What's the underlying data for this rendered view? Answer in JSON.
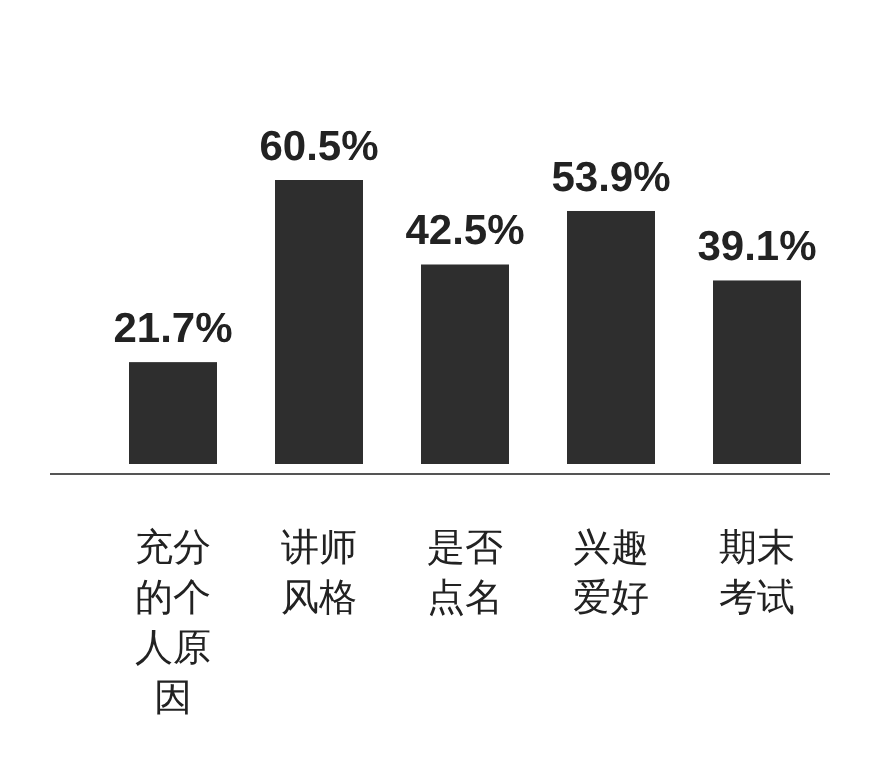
{
  "chart_data": {
    "type": "bar",
    "categories": [
      "充分的个人原因",
      "讲师风格",
      "是否点名",
      "兴趣爱好",
      "期末考试"
    ],
    "values": [
      21.7,
      60.5,
      42.5,
      53.9,
      39.1
    ],
    "value_labels": [
      "21.7%",
      "60.5%",
      "42.5%",
      "53.9%",
      "39.1%"
    ],
    "color": "#2e2e2e"
  }
}
